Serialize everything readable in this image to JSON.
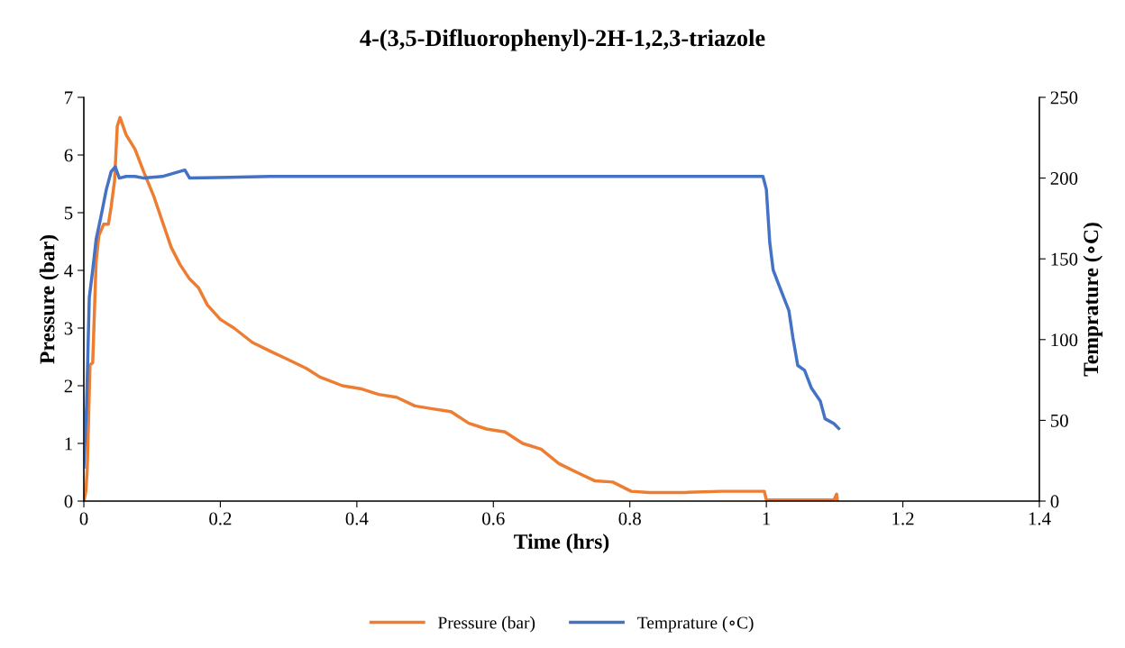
{
  "chart_data": {
    "type": "line",
    "title": "4-(3,5-Difluorophenyl)-2H-1,2,3-triazole",
    "xlabel": "Time (hrs)",
    "ylabel": "Pressure (bar)",
    "y2label": "Temprature (∘C)",
    "xlim": [
      0,
      1.4
    ],
    "xticks": [
      0,
      0.2,
      0.4,
      0.6,
      0.8,
      1,
      1.2,
      1.4
    ],
    "ylim": [
      0,
      7
    ],
    "yticks": [
      0,
      1,
      2,
      3,
      4,
      5,
      6,
      7
    ],
    "y2lim": [
      0,
      250
    ],
    "y2ticks": [
      0,
      50,
      100,
      150,
      200,
      250
    ],
    "grid": false,
    "legend": "bottom",
    "marker": "none",
    "line_style": "solid",
    "series": [
      {
        "name": "Pressure (bar)",
        "color": "#ed7d31",
        "axis": "y",
        "x": [
          0,
          0.003,
          0.005,
          0.009,
          0.013,
          0.018,
          0.022,
          0.029,
          0.036,
          0.04,
          0.045,
          0.049,
          0.053,
          0.062,
          0.075,
          0.088,
          0.102,
          0.115,
          0.128,
          0.141,
          0.155,
          0.168,
          0.181,
          0.2,
          0.22,
          0.247,
          0.273,
          0.3,
          0.326,
          0.346,
          0.379,
          0.405,
          0.432,
          0.458,
          0.485,
          0.511,
          0.538,
          0.564,
          0.59,
          0.617,
          0.643,
          0.67,
          0.696,
          0.722,
          0.749,
          0.775,
          0.802,
          0.828,
          0.881,
          0.934,
          0.987,
          0.997,
          1.0,
          1.066,
          1.099,
          1.103,
          1.104
        ],
        "values": [
          0,
          0.17,
          0.56,
          2.36,
          2.4,
          4.15,
          4.6,
          4.8,
          4.8,
          5.1,
          5.55,
          6.5,
          6.65,
          6.35,
          6.1,
          5.7,
          5.3,
          4.85,
          4.4,
          4.1,
          3.85,
          3.7,
          3.4,
          3.15,
          3.0,
          2.75,
          2.6,
          2.45,
          2.3,
          2.15,
          2.0,
          1.95,
          1.85,
          1.8,
          1.65,
          1.6,
          1.55,
          1.35,
          1.25,
          1.2,
          1.0,
          0.9,
          0.65,
          0.5,
          0.35,
          0.33,
          0.17,
          0.15,
          0.15,
          0.17,
          0.17,
          0.17,
          0.02,
          0.02,
          0.02,
          0.12,
          0.02
        ]
      },
      {
        "name": "Temprature (∘C)",
        "color": "#4472c4",
        "axis": "y2",
        "x": [
          0,
          0.004,
          0.008,
          0.013,
          0.018,
          0.025,
          0.033,
          0.04,
          0.046,
          0.052,
          0.062,
          0.075,
          0.088,
          0.115,
          0.148,
          0.155,
          0.273,
          0.538,
          0.802,
          0.987,
          0.995,
          1.0,
          1.005,
          1.01,
          1.02,
          1.033,
          1.039,
          1.046,
          1.056,
          1.066,
          1.079,
          1.086,
          1.099,
          1.106
        ],
        "values": [
          21,
          59,
          126,
          143,
          162,
          176,
          193,
          204,
          207,
          200,
          201,
          201,
          200,
          201,
          205,
          200,
          201,
          201,
          201,
          201,
          201,
          193,
          160,
          143,
          132,
          118,
          101,
          84,
          81,
          70,
          62,
          51,
          48,
          45
        ]
      }
    ]
  }
}
